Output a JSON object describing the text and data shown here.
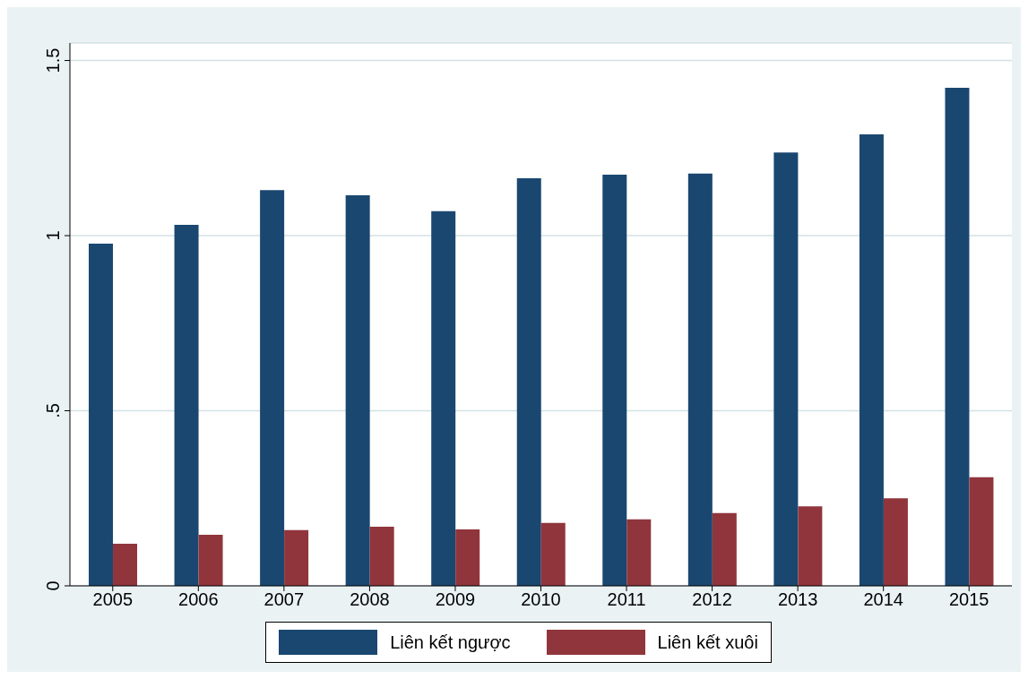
{
  "chart_data": {
    "type": "bar",
    "categories": [
      "2005",
      "2006",
      "2007",
      "2008",
      "2009",
      "2010",
      "2011",
      "2012",
      "2013",
      "2014",
      "2015"
    ],
    "series": [
      {
        "name": "Liên kết ngược",
        "color": "#1a476f",
        "values": [
          0.977,
          1.031,
          1.13,
          1.115,
          1.07,
          1.164,
          1.174,
          1.177,
          1.237,
          1.289,
          1.422
        ]
      },
      {
        "name": "Liên kết xuôi",
        "color": "#90353b",
        "values": [
          0.12,
          0.146,
          0.159,
          0.169,
          0.161,
          0.18,
          0.19,
          0.208,
          0.227,
          0.25,
          0.31
        ]
      }
    ],
    "ylim": [
      0,
      1.55
    ],
    "yticks": [
      0,
      {
        "value": 0.5,
        "label": ".5"
      },
      1,
      1.5
    ],
    "grid": "y",
    "legend": "bottom"
  }
}
